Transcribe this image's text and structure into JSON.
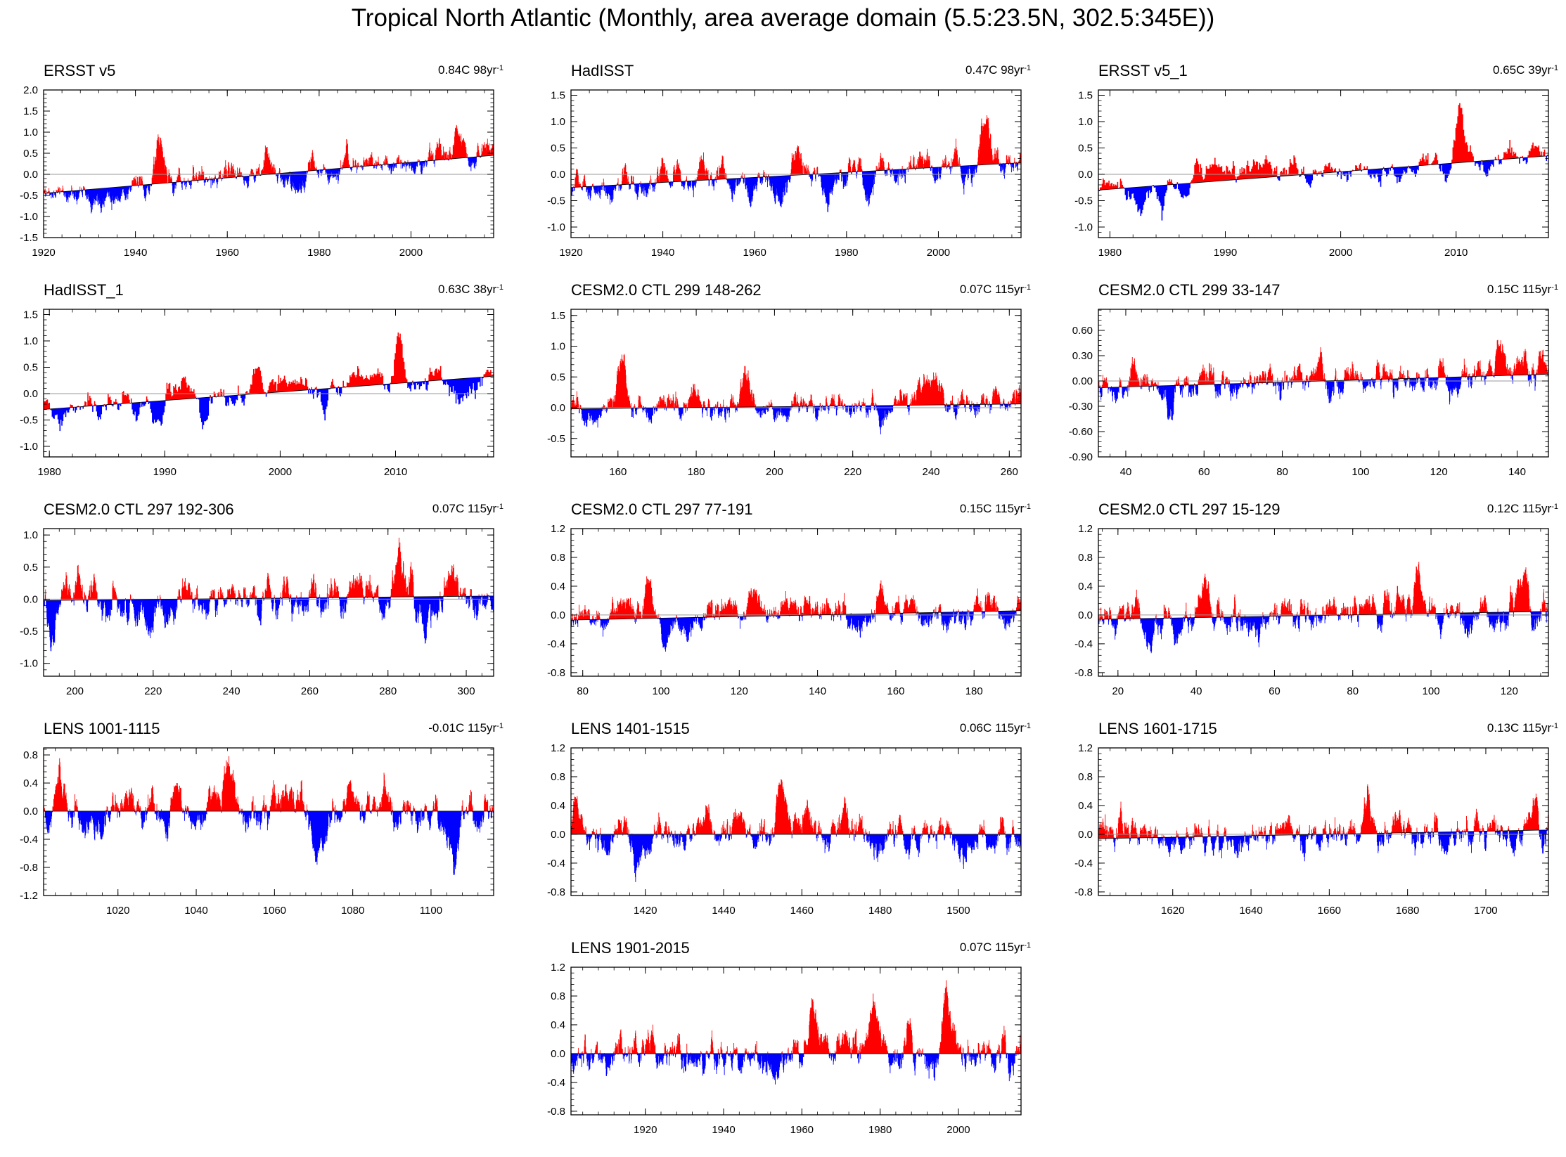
{
  "figure": {
    "title": "Tropical North Atlantic (Monthly, area average domain (5.5:23.5N, 302.5:345E))"
  },
  "colors": {
    "positive": "#ff0000",
    "negative": "#0000ff",
    "zero_line": "#999999",
    "trend_line": "#000000"
  },
  "chart_data": [
    {
      "type": "area",
      "title": "ERSST v5",
      "trend_value": "0.84C 98yr",
      "trend_unit_exp": "-1",
      "xlim": [
        1920,
        2018
      ],
      "ylim": [
        -1.5,
        2.0
      ],
      "x_ticks": [
        1920,
        1940,
        1960,
        1980,
        2000
      ],
      "x_tick_labels": [
        "1920",
        "1940",
        "1960",
        "1980",
        "2000"
      ],
      "y_ticks": [
        -1.5,
        -1.0,
        -0.5,
        0.0,
        0.5,
        1.0,
        1.5,
        2.0
      ],
      "y_tick_labels": [
        "-1.5",
        "-1.0",
        "-0.5",
        "0.0",
        "0.5",
        "1.0",
        "1.5",
        "2.0"
      ],
      "trend_endpoints": [
        -0.45,
        0.45
      ],
      "amp_pos": 0.75,
      "amp_neg": 0.6,
      "seed": 11,
      "events": [
        [
          1945,
          0.7
        ],
        [
          1969,
          0.5
        ],
        [
          1998,
          0.3
        ],
        [
          2010,
          0.7
        ],
        [
          1973,
          -0.5
        ],
        [
          1976,
          -0.4
        ]
      ]
    },
    {
      "type": "area",
      "title": "HadISST",
      "trend_value": "0.47C 98yr",
      "trend_unit_exp": "-1",
      "xlim": [
        1920,
        2018
      ],
      "ylim": [
        -1.2,
        1.6
      ],
      "x_ticks": [
        1920,
        1940,
        1960,
        1980,
        2000
      ],
      "x_tick_labels": [
        "1920",
        "1940",
        "1960",
        "1980",
        "2000"
      ],
      "y_ticks": [
        -1.0,
        -0.5,
        0.0,
        0.5,
        1.0,
        1.5
      ],
      "y_tick_labels": [
        "-1.0",
        "-0.5",
        "0.0",
        "0.5",
        "1.0",
        "1.5"
      ],
      "trend_endpoints": [
        -0.25,
        0.22
      ],
      "amp_pos": 0.65,
      "amp_neg": 0.6,
      "seed": 23,
      "events": [
        [
          1969,
          0.6
        ],
        [
          2010,
          0.8
        ],
        [
          1976,
          -0.4
        ],
        [
          1985,
          -0.3
        ]
      ]
    },
    {
      "type": "area",
      "title": "ERSST v5_1",
      "trend_value": "0.65C 39yr",
      "trend_unit_exp": "-1",
      "xlim": [
        1979,
        2018
      ],
      "ylim": [
        -1.2,
        1.6
      ],
      "x_ticks": [
        1980,
        1990,
        2000,
        2010
      ],
      "x_tick_labels": [
        "1980",
        "1990",
        "2000",
        "2010"
      ],
      "y_ticks": [
        -1.0,
        -0.5,
        0.0,
        0.5,
        1.0,
        1.5
      ],
      "y_tick_labels": [
        "-1.0",
        "-0.5",
        "0.0",
        "0.5",
        "1.0",
        "1.5"
      ],
      "trend_endpoints": [
        -0.3,
        0.35
      ],
      "amp_pos": 0.5,
      "amp_neg": 0.55,
      "seed": 37,
      "events": [
        [
          2010.3,
          0.9
        ],
        [
          1984.5,
          -0.6
        ],
        [
          2009,
          -0.4
        ],
        [
          1987.5,
          0.6
        ]
      ]
    },
    {
      "type": "area",
      "title": "HadISST_1",
      "trend_value": "0.63C 38yr",
      "trend_unit_exp": "-1",
      "xlim": [
        1979.5,
        2018.5
      ],
      "ylim": [
        -1.2,
        1.6
      ],
      "x_ticks": [
        1980,
        1990,
        2000,
        2010
      ],
      "x_tick_labels": [
        "1980",
        "1990",
        "2000",
        "2010"
      ],
      "y_ticks": [
        -1.0,
        -0.5,
        0.0,
        0.5,
        1.0,
        1.5
      ],
      "y_tick_labels": [
        "-1.0",
        "-0.5",
        "0.0",
        "0.5",
        "1.0",
        "1.5"
      ],
      "trend_endpoints": [
        -0.3,
        0.33
      ],
      "amp_pos": 0.5,
      "amp_neg": 0.55,
      "seed": 41,
      "events": [
        [
          2010.3,
          1.0
        ],
        [
          1989.5,
          -0.6
        ],
        [
          1993.5,
          -0.5
        ],
        [
          1998,
          0.45
        ]
      ]
    },
    {
      "type": "area",
      "title": "CESM2.0 CTL 299 148-262",
      "trend_value": "0.07C 115yr",
      "trend_unit_exp": "-1",
      "xlim": [
        148,
        263
      ],
      "ylim": [
        -0.8,
        1.6
      ],
      "x_ticks": [
        160,
        180,
        200,
        220,
        240,
        260
      ],
      "x_tick_labels": [
        "160",
        "180",
        "200",
        "220",
        "240",
        "260"
      ],
      "y_ticks": [
        -0.5,
        0.0,
        0.5,
        1.0,
        1.5
      ],
      "y_tick_labels": [
        "-0.5",
        "0.0",
        "0.5",
        "1.0",
        "1.5"
      ],
      "trend_endpoints": [
        -0.02,
        0.06
      ],
      "amp_pos": 0.5,
      "amp_neg": 0.45,
      "seed": 53,
      "events": [
        [
          161,
          0.9
        ],
        [
          193,
          0.6
        ],
        [
          228,
          -0.4
        ]
      ]
    },
    {
      "type": "area",
      "title": "CESM2.0 CTL 299 33-147",
      "trend_value": "0.15C 115yr",
      "trend_unit_exp": "-1",
      "xlim": [
        33,
        148
      ],
      "ylim": [
        -0.9,
        0.85
      ],
      "x_ticks": [
        40,
        60,
        80,
        100,
        120,
        140
      ],
      "x_tick_labels": [
        "40",
        "60",
        "80",
        "100",
        "120",
        "140"
      ],
      "y_ticks": [
        -0.9,
        -0.6,
        -0.3,
        0.0,
        0.3,
        0.6
      ],
      "y_tick_labels": [
        "-0.90",
        "-0.60",
        "-0.30",
        "0.00",
        "0.30",
        "0.60"
      ],
      "trend_endpoints": [
        -0.08,
        0.08
      ],
      "amp_pos": 0.45,
      "amp_neg": 0.45,
      "seed": 67,
      "events": [
        [
          52,
          -0.5
        ],
        [
          136,
          0.45
        ],
        [
          53,
          0.4
        ]
      ]
    },
    {
      "type": "area",
      "title": "CESM2.0 CTL 297 192-306",
      "trend_value": "0.07C 115yr",
      "trend_unit_exp": "-1",
      "xlim": [
        192,
        307
      ],
      "ylim": [
        -1.2,
        1.1
      ],
      "x_ticks": [
        200,
        220,
        240,
        260,
        280,
        300
      ],
      "x_tick_labels": [
        "200",
        "220",
        "240",
        "260",
        "280",
        "300"
      ],
      "y_ticks": [
        -1.0,
        -0.5,
        0.0,
        0.5,
        1.0
      ],
      "y_tick_labels": [
        "-1.0",
        "-0.5",
        "0.0",
        "0.5",
        "1.0"
      ],
      "trend_endpoints": [
        -0.02,
        0.05
      ],
      "amp_pos": 0.55,
      "amp_neg": 0.55,
      "seed": 71,
      "events": [
        [
          283,
          0.6
        ],
        [
          194.5,
          -0.6
        ],
        [
          290,
          -0.4
        ]
      ]
    },
    {
      "type": "area",
      "title": "CESM2.0 CTL 297 77-191",
      "trend_value": "0.15C 115yr",
      "trend_unit_exp": "-1",
      "xlim": [
        77,
        192
      ],
      "ylim": [
        -0.85,
        1.2
      ],
      "x_ticks": [
        80,
        100,
        120,
        140,
        160,
        180
      ],
      "x_tick_labels": [
        "80",
        "100",
        "120",
        "140",
        "160",
        "180"
      ],
      "y_ticks": [
        -0.8,
        -0.4,
        0.0,
        0.4,
        0.8,
        1.2
      ],
      "y_tick_labels": [
        "-0.8",
        "-0.4",
        "0.0",
        "0.4",
        "0.8",
        "1.2"
      ],
      "trend_endpoints": [
        -0.07,
        0.06
      ],
      "amp_pos": 0.5,
      "amp_neg": 0.45,
      "seed": 83,
      "events": [
        [
          97,
          0.5
        ],
        [
          124,
          0.45
        ]
      ]
    },
    {
      "type": "area",
      "title": "CESM2.0 CTL 297 15-129",
      "trend_value": "0.12C 115yr",
      "trend_unit_exp": "-1",
      "xlim": [
        15,
        130
      ],
      "ylim": [
        -0.85,
        1.2
      ],
      "x_ticks": [
        20,
        40,
        60,
        80,
        100,
        120
      ],
      "x_tick_labels": [
        "20",
        "40",
        "60",
        "80",
        "100",
        "120"
      ],
      "y_ticks": [
        -0.8,
        -0.4,
        0.0,
        0.4,
        0.8,
        1.2
      ],
      "y_tick_labels": [
        "-0.8",
        "-0.4",
        "0.0",
        "0.4",
        "0.8",
        "1.2"
      ],
      "trend_endpoints": [
        -0.06,
        0.05
      ],
      "amp_pos": 0.5,
      "amp_neg": 0.45,
      "seed": 97,
      "events": [
        [
          42,
          0.6
        ],
        [
          97,
          0.5
        ],
        [
          124,
          0.5
        ]
      ]
    },
    {
      "type": "area",
      "title": "LENS 1001-1115",
      "trend_value": "-0.01C 115yr",
      "trend_unit_exp": "-1",
      "xlim": [
        1001,
        1116
      ],
      "ylim": [
        -1.2,
        0.9
      ],
      "x_ticks": [
        1020,
        1040,
        1060,
        1080,
        1100
      ],
      "x_tick_labels": [
        "1020",
        "1040",
        "1060",
        "1080",
        "1100"
      ],
      "y_ticks": [
        -1.2,
        -0.8,
        -0.4,
        0.0,
        0.4,
        0.8
      ],
      "y_tick_labels": [
        "-1.2",
        "-0.8",
        "-0.4",
        "0.0",
        "0.4",
        "0.8"
      ],
      "trend_endpoints": [
        0.0,
        0.0
      ],
      "amp_pos": 0.5,
      "amp_neg": 0.45,
      "seed": 101,
      "events": [
        [
          1106,
          -0.8
        ],
        [
          1048,
          0.6
        ],
        [
          1005,
          0.5
        ],
        [
          1071,
          -0.4
        ]
      ]
    },
    {
      "type": "area",
      "title": "LENS 1401-1515",
      "trend_value": "0.06C 115yr",
      "trend_unit_exp": "-1",
      "xlim": [
        1401,
        1516
      ],
      "ylim": [
        -0.85,
        1.2
      ],
      "x_ticks": [
        1420,
        1440,
        1460,
        1480,
        1500
      ],
      "x_tick_labels": [
        "1420",
        "1440",
        "1460",
        "1480",
        "1500"
      ],
      "y_ticks": [
        -0.8,
        -0.4,
        0.0,
        0.4,
        0.8,
        1.2
      ],
      "y_tick_labels": [
        "-0.8",
        "-0.4",
        "0.0",
        "0.4",
        "0.8",
        "1.2"
      ],
      "trend_endpoints": [
        0.0,
        0.0
      ],
      "amp_pos": 0.5,
      "amp_neg": 0.45,
      "seed": 113,
      "events": [
        [
          1455,
          0.75
        ],
        [
          1403,
          0.4
        ],
        [
          1418,
          -0.4
        ]
      ]
    },
    {
      "type": "area",
      "title": "LENS 1601-1715",
      "trend_value": "0.13C 115yr",
      "trend_unit_exp": "-1",
      "xlim": [
        1601,
        1716
      ],
      "ylim": [
        -0.85,
        1.2
      ],
      "x_ticks": [
        1620,
        1640,
        1660,
        1680,
        1700
      ],
      "x_tick_labels": [
        "1620",
        "1640",
        "1660",
        "1680",
        "1700"
      ],
      "y_ticks": [
        -0.8,
        -0.4,
        0.0,
        0.4,
        0.8,
        1.2
      ],
      "y_tick_labels": [
        "-0.8",
        "-0.4",
        "0.0",
        "0.4",
        "0.8",
        "1.2"
      ],
      "trend_endpoints": [
        -0.06,
        0.06
      ],
      "amp_pos": 0.45,
      "amp_neg": 0.4,
      "seed": 127,
      "events": [
        [
          1670,
          0.6
        ],
        [
          1714,
          -0.4
        ],
        [
          1713,
          0.5
        ]
      ]
    },
    {
      "type": "area",
      "title": "LENS 1901-2015",
      "trend_value": "0.07C 115yr",
      "trend_unit_exp": "-1",
      "xlim": [
        1901,
        2016
      ],
      "ylim": [
        -0.85,
        1.2
      ],
      "x_ticks": [
        1920,
        1940,
        1960,
        1980,
        2000
      ],
      "x_tick_labels": [
        "1920",
        "1940",
        "1960",
        "1980",
        "2000"
      ],
      "y_ticks": [
        -0.8,
        -0.4,
        0.0,
        0.4,
        0.8,
        1.2
      ],
      "y_tick_labels": [
        "-0.8",
        "-0.4",
        "0.0",
        "0.4",
        "0.8",
        "1.2"
      ],
      "trend_endpoints": [
        0.0,
        0.0
      ],
      "amp_pos": 0.5,
      "amp_neg": 0.45,
      "seed": 131,
      "events": [
        [
          1997,
          0.8
        ],
        [
          1963,
          0.6
        ],
        [
          1978,
          0.5
        ]
      ]
    }
  ]
}
